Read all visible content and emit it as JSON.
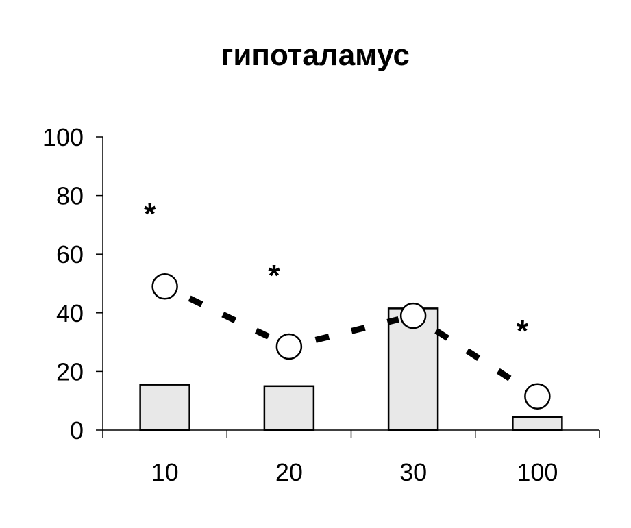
{
  "chart_data": {
    "type": "bar",
    "title": "гипоталамус",
    "categories": [
      "10",
      "20",
      "30",
      "100"
    ],
    "ylim": [
      0,
      100
    ],
    "yticks": [
      "0",
      "20",
      "40",
      "60",
      "80",
      "100"
    ],
    "grid": false,
    "series": [
      {
        "type": "bar",
        "values": [
          15.5,
          15,
          41.5,
          4.5
        ],
        "color": "#e8e8e8"
      },
      {
        "type": "line",
        "values": [
          49,
          28.5,
          39,
          11.5
        ],
        "style": "dashed",
        "marker": "circle"
      }
    ],
    "annotations": [
      {
        "text": "*",
        "category": "10",
        "y": 75
      },
      {
        "text": "*",
        "category": "20",
        "y": 54
      },
      {
        "text": "*",
        "category": "100",
        "y": 35
      }
    ]
  }
}
